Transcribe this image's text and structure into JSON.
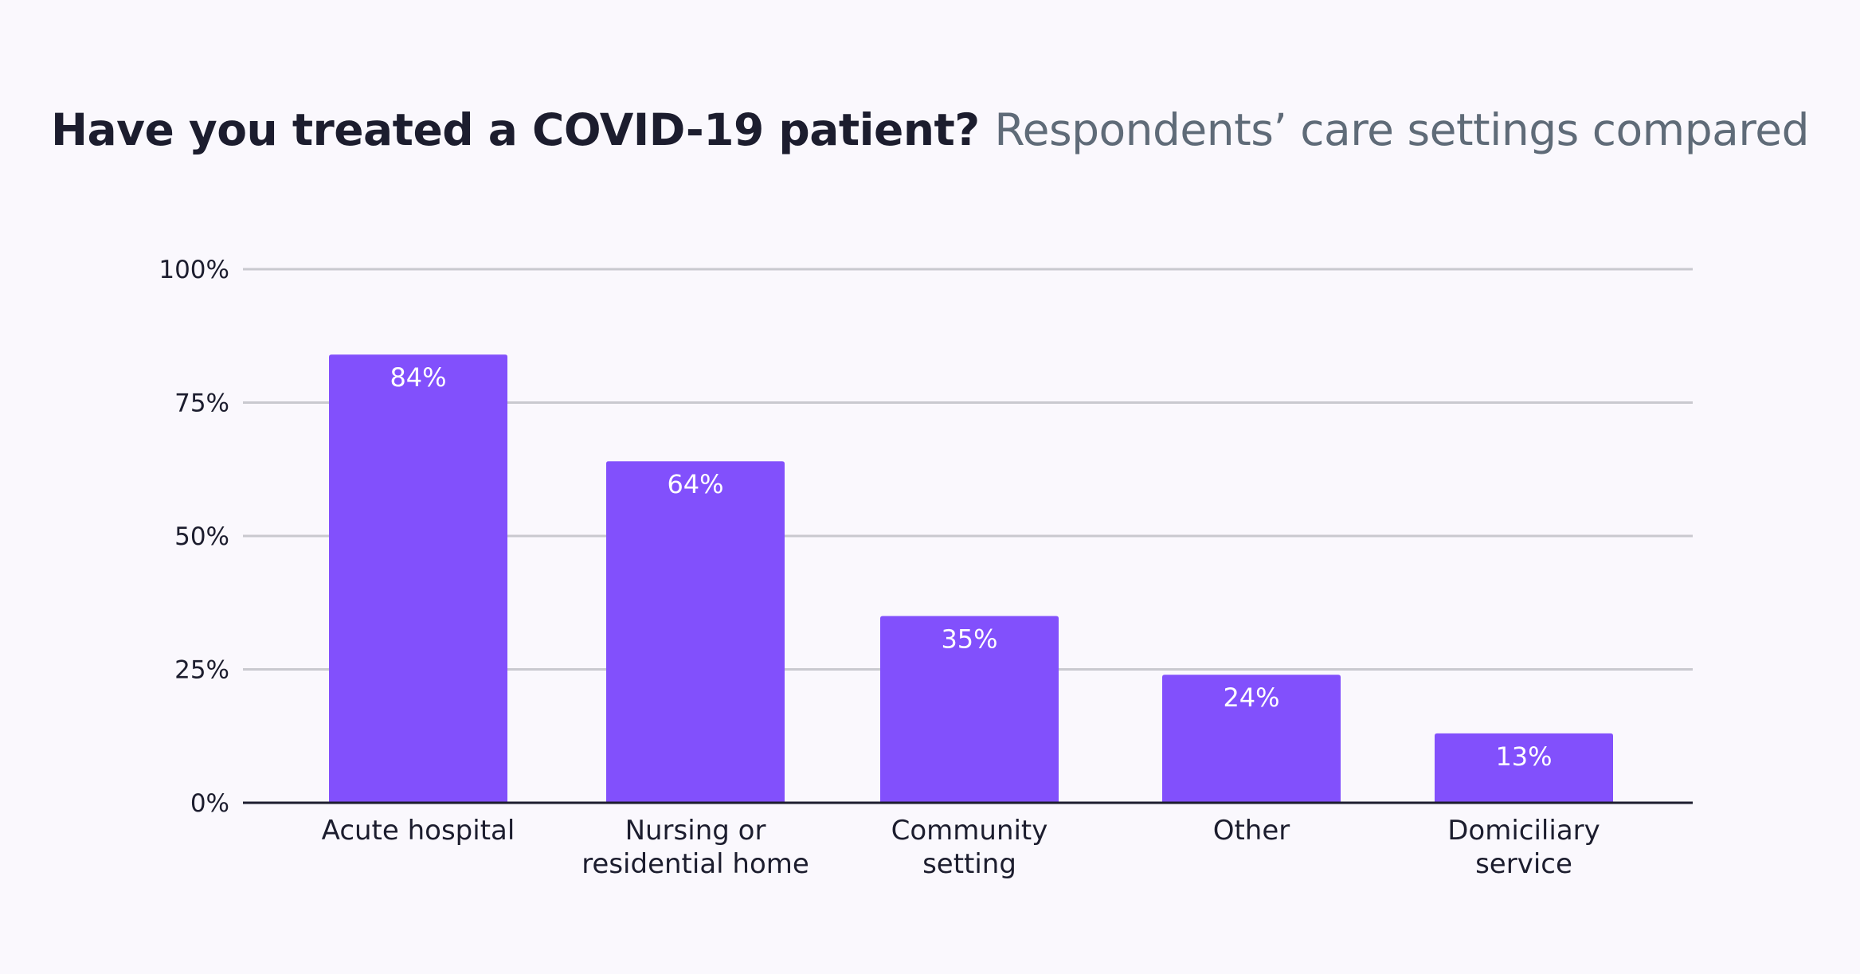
{
  "title": {
    "main": "Have you treated a COVID-19 patient?",
    "subtitle": "Respondents’ care settings compared"
  },
  "colors": {
    "bar": "#8250fc",
    "grid": "#c9c9cf",
    "axis": "#1c1d2e",
    "text": "#1c1d2e",
    "subtitle": "#5f6b78",
    "background": "#faf8fd"
  },
  "chart_data": {
    "type": "bar",
    "categories": [
      [
        "Acute hospital"
      ],
      [
        "Nursing or",
        "residential home"
      ],
      [
        "Community",
        "setting"
      ],
      [
        "Other"
      ],
      [
        "Domiciliary",
        "service"
      ]
    ],
    "values": [
      84,
      64,
      35,
      24,
      13
    ],
    "value_labels": [
      "84%",
      "64%",
      "35%",
      "24%",
      "13%"
    ],
    "ylim": [
      0,
      100
    ],
    "yticks": [
      0,
      25,
      50,
      75,
      100
    ],
    "ytick_labels": [
      "0%",
      "25%",
      "50%",
      "75%",
      "100%"
    ],
    "grid": true,
    "legend": "none"
  }
}
